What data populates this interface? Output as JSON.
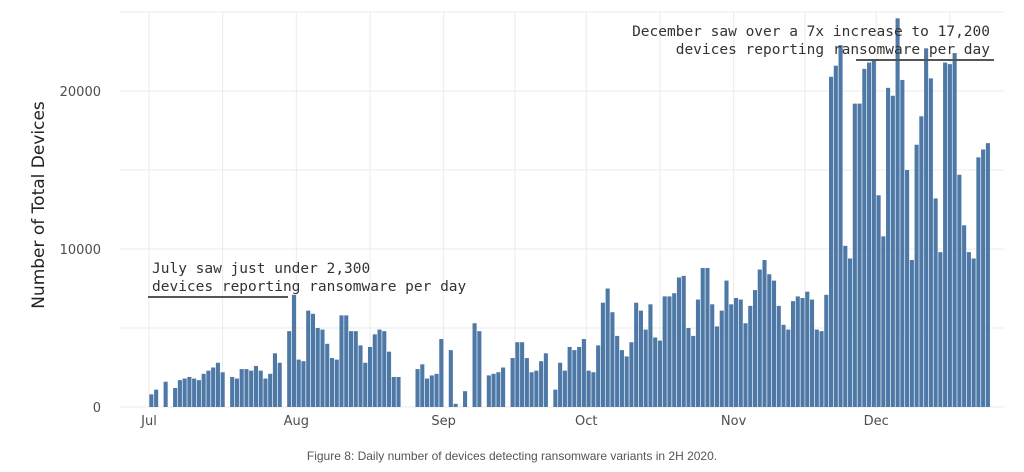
{
  "chart_data": {
    "type": "bar",
    "ylabel": "Number of Total Devices",
    "xlabel": "",
    "ylim": [
      0,
      25000
    ],
    "y_ticks": [
      0,
      10000,
      20000
    ],
    "y_tick_labels": [
      "0",
      "10000",
      "20000"
    ],
    "grid": true,
    "color": "#4e79a7",
    "x_tick_labels": [
      "Jul",
      "Aug",
      "Sep",
      "Oct",
      "Nov",
      "Dec"
    ],
    "series": [
      {
        "values": [
          800,
          1100,
          0,
          1600,
          0,
          1200,
          1700,
          1800,
          1900,
          1800,
          1700,
          2100,
          2300,
          2500,
          2800,
          2200,
          0,
          1900,
          1800,
          2400,
          2400,
          2300,
          2600,
          2300,
          1800,
          2100,
          3400,
          2800,
          0,
          4800,
          7100,
          3000,
          2900,
          6100,
          5900,
          5000,
          4900,
          4000,
          3100,
          3000,
          5800,
          5800,
          4800,
          4800,
          3900,
          2800,
          3800,
          4600,
          4900,
          4800,
          3500,
          1900,
          1900,
          0,
          0,
          0,
          2400,
          2700,
          1800,
          2000,
          2100,
          4300,
          0,
          3600,
          200,
          0,
          1000,
          0,
          5300,
          4800,
          0,
          2000,
          2100,
          2200,
          2500,
          0,
          3100,
          4100,
          4100,
          3100,
          2200,
          2300,
          2900,
          3400,
          0,
          1100,
          2800,
          2300,
          3800,
          3600,
          3800,
          4300,
          2300,
          2200,
          3900,
          6600,
          7500,
          6000,
          4500,
          3600,
          3200,
          4100,
          6600,
          6100,
          4900,
          6500,
          4400,
          4200,
          7000,
          7000,
          7200,
          8200,
          8300,
          5000,
          4500,
          6800,
          8800,
          8800,
          6500,
          5100,
          6100,
          8000,
          6500,
          6900,
          6800,
          5300,
          6400,
          7400,
          8700,
          9300,
          8400,
          8000,
          6400,
          5200,
          4900,
          6700,
          7000,
          6900,
          7300,
          6800,
          4900,
          4800,
          7100,
          20900,
          21600,
          22900,
          10200,
          9400,
          19200,
          19200,
          21400,
          21800,
          22000,
          13400,
          10800,
          20200,
          19700,
          24600,
          20700,
          15000,
          9300,
          16600,
          18400,
          22700,
          20800,
          13200,
          9800,
          21800,
          21700,
          22400,
          14700,
          11500,
          9800,
          9400,
          15800,
          16300,
          16700
        ]
      }
    ],
    "annotations": [
      {
        "lines": [
          "July saw just under 2,300",
          "devices reporting ransomware per day"
        ]
      },
      {
        "lines": [
          "December saw over a 7x increase to 17,200",
          "devices reporting ransomware per day"
        ]
      }
    ],
    "caption": "Figure 8: Daily number of devices detecting ransomware variants in 2H 2020."
  }
}
